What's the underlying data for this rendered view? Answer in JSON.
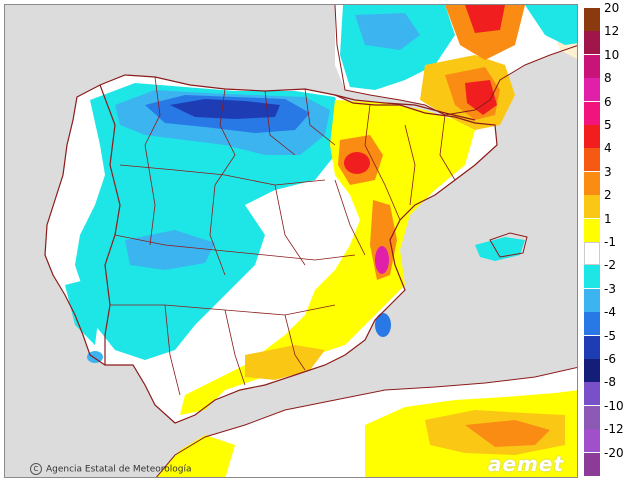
{
  "credit": {
    "icon": "copyright-icon",
    "text": "Agencia Estatal de Meteorología"
  },
  "brand": {
    "logo_text": "aemet"
  },
  "legend": {
    "entries": [
      {
        "label": "20",
        "color": "#8b3a0f"
      },
      {
        "label": "12",
        "color": "#a0154a"
      },
      {
        "label": "10",
        "color": "#c81478"
      },
      {
        "label": "8",
        "color": "#e020a8"
      },
      {
        "label": "6",
        "color": "#f0147c"
      },
      {
        "label": "5",
        "color": "#f01e1e"
      },
      {
        "label": "4",
        "color": "#f55a14"
      },
      {
        "label": "3",
        "color": "#fa8c14"
      },
      {
        "label": "2",
        "color": "#fac814"
      },
      {
        "label": "1",
        "color": "#ffff00"
      },
      {
        "label": "-1",
        "color": "#ffffff"
      },
      {
        "label": "-2",
        "color": "#1ee6e6"
      },
      {
        "label": "-3",
        "color": "#3cb4f0"
      },
      {
        "label": "-4",
        "color": "#2878e6"
      },
      {
        "label": "-5",
        "color": "#1e3cb4"
      },
      {
        "label": "-6",
        "color": "#141e78"
      },
      {
        "label": "-8",
        "color": "#7850c8"
      },
      {
        "label": "-10",
        "color": "#8c5ab4"
      },
      {
        "label": "-12",
        "color": "#a050c8"
      },
      {
        "label": "-20",
        "color": "#8c3c96"
      }
    ]
  },
  "colors": {
    "sea": "#dcdcdc",
    "land": "#ffffff",
    "border": "#8b1a1a"
  }
}
